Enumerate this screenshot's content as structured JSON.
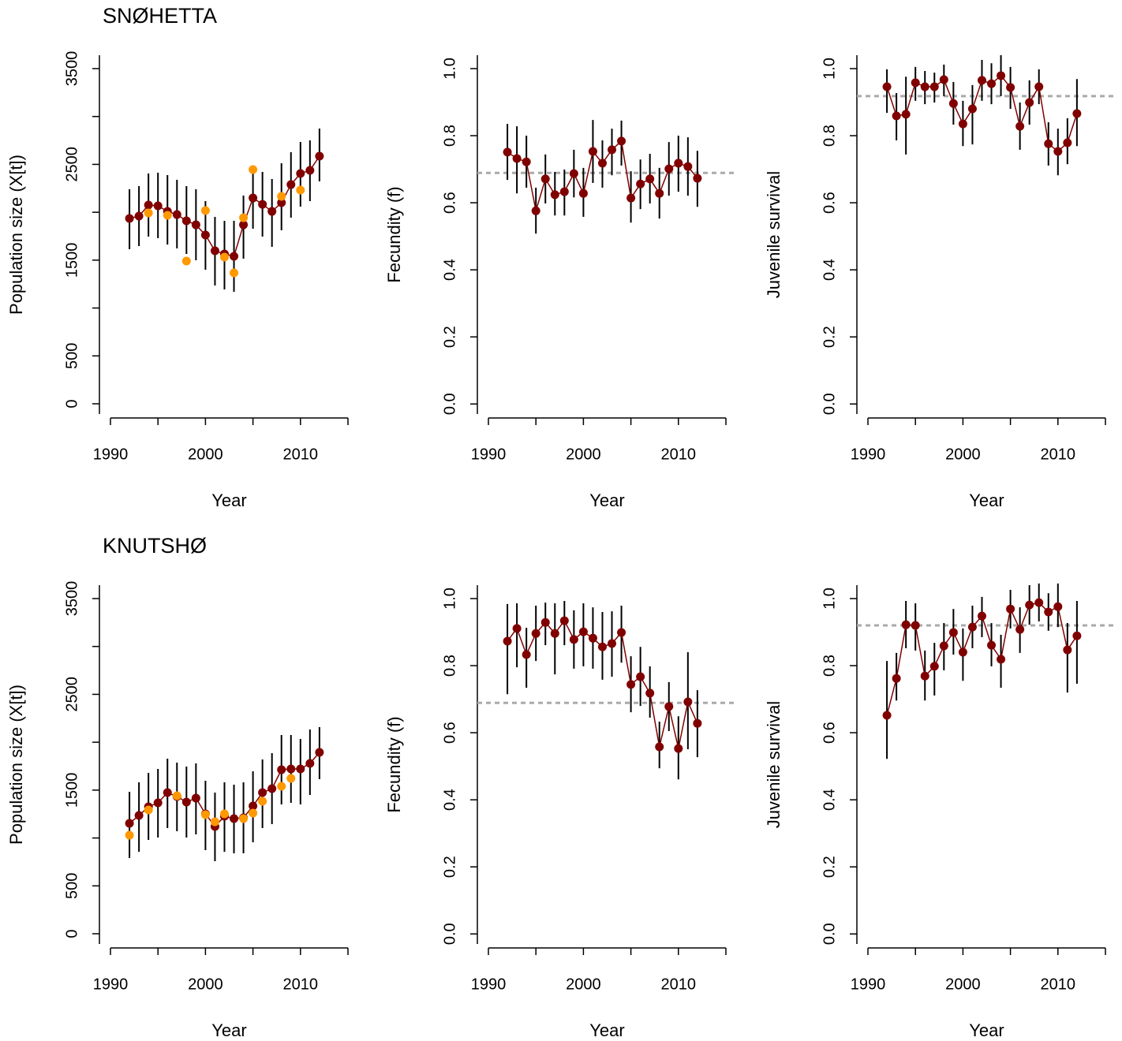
{
  "chart_data": [
    {
      "type": "line",
      "title": "SNØHETTA",
      "xlabel": "Year",
      "ylabel": "Population size (X[t])",
      "xlim": [
        1990,
        2015
      ],
      "ylim": [
        -107,
        3640
      ],
      "xticks": [
        1990,
        2000,
        2010
      ],
      "xticks_unlabeled": [
        1995,
        2005,
        2015
      ],
      "yticks": [
        0,
        500,
        1500,
        2500,
        3500
      ],
      "yticks_unlabeled": [
        1000,
        2000,
        3000
      ],
      "series": [
        {
          "color": "#800000",
          "x": [
            1992,
            1993,
            1994,
            1995,
            1996,
            1997,
            1998,
            1999,
            2000,
            2001,
            2002,
            2003,
            2004,
            2005,
            2006,
            2007,
            2008,
            2009,
            2010,
            2011,
            2012
          ],
          "values": [
            1935,
            1960,
            2075,
            2067,
            2009,
            1976,
            1911,
            1869,
            1762,
            1598,
            1565,
            1540,
            1869,
            2149,
            2083,
            2009,
            2100,
            2289,
            2405,
            2438,
            2586
          ],
          "lower": [
            1614,
            1647,
            1746,
            1729,
            1663,
            1622,
            1565,
            1499,
            1400,
            1235,
            1194,
            1169,
            1515,
            1828,
            1746,
            1639,
            1812,
            1944,
            2059,
            2116,
            2322
          ],
          "upper": [
            2240,
            2273,
            2405,
            2413,
            2388,
            2339,
            2273,
            2240,
            2116,
            1952,
            1911,
            1911,
            2174,
            2487,
            2421,
            2347,
            2512,
            2627,
            2734,
            2751,
            2874
          ]
        },
        {
          "color": "#ff9900",
          "x": [
            1994,
            1996,
            1998,
            2000,
            2002,
            2003,
            2004,
            2005,
            2008,
            2010
          ],
          "values": [
            1993,
            1968,
            1491,
            2018,
            1532,
            1367,
            1943,
            2446,
            2166,
            2232
          ],
          "line": false
        }
      ]
    },
    {
      "type": "line",
      "xlabel": "Year",
      "ylabel": "Fecundity (f)",
      "xlim": [
        1990,
        2015
      ],
      "ylim": [
        -0.03,
        1.04
      ],
      "xticks": [
        1990,
        2000,
        2010
      ],
      "xticks_unlabeled": [
        1995,
        2005,
        2015
      ],
      "yticks": [
        {
          "value": 0,
          "label": "0.0"
        },
        0.2,
        0.4,
        0.6,
        0.8,
        {
          "value": 1,
          "label": "1.0"
        }
      ],
      "hline": 0.689,
      "hline_color": "#aaaaaa",
      "series": [
        {
          "color": "#800000",
          "x": [
            1992,
            1993,
            1994,
            1995,
            1996,
            1997,
            1998,
            1999,
            2000,
            2001,
            2002,
            2003,
            2004,
            2005,
            2006,
            2007,
            2008,
            2009,
            2010,
            2011,
            2012
          ],
          "values": [
            0.751,
            0.732,
            0.722,
            0.576,
            0.671,
            0.624,
            0.633,
            0.687,
            0.628,
            0.753,
            0.718,
            0.758,
            0.784,
            0.614,
            0.656,
            0.671,
            0.628,
            0.701,
            0.718,
            0.708,
            0.673
          ],
          "lower": [
            0.668,
            0.628,
            0.645,
            0.508,
            0.598,
            0.562,
            0.562,
            0.616,
            0.558,
            0.659,
            0.645,
            0.682,
            0.711,
            0.541,
            0.581,
            0.598,
            0.553,
            0.621,
            0.633,
            0.621,
            0.588
          ],
          "upper": [
            0.835,
            0.828,
            0.8,
            0.645,
            0.744,
            0.692,
            0.699,
            0.758,
            0.704,
            0.847,
            0.786,
            0.821,
            0.845,
            0.694,
            0.729,
            0.746,
            0.704,
            0.781,
            0.8,
            0.795,
            0.755
          ]
        }
      ]
    },
    {
      "type": "line",
      "xlabel": "Year",
      "ylabel": "Juvenile survival",
      "xlim": [
        1990,
        2015
      ],
      "ylim": [
        -0.03,
        1.04
      ],
      "xticks": [
        1990,
        2000,
        2010
      ],
      "xticks_unlabeled": [
        1995,
        2005,
        2015
      ],
      "yticks": [
        {
          "value": 0,
          "label": "0.0"
        },
        0.2,
        0.4,
        0.6,
        0.8,
        {
          "value": 1,
          "label": "1.0"
        }
      ],
      "hline": 0.918,
      "hline_color": "#aaaaaa",
      "series": [
        {
          "color": "#800000",
          "x": [
            1992,
            1993,
            1994,
            1995,
            1996,
            1997,
            1998,
            1999,
            2000,
            2001,
            2002,
            2003,
            2004,
            2005,
            2006,
            2007,
            2008,
            2009,
            2010,
            2011,
            2012
          ],
          "values": [
            0.946,
            0.859,
            0.864,
            0.958,
            0.946,
            0.946,
            0.967,
            0.896,
            0.835,
            0.88,
            0.965,
            0.955,
            0.979,
            0.944,
            0.828,
            0.899,
            0.946,
            0.776,
            0.753,
            0.779,
            0.866
          ],
          "lower": [
            0.868,
            0.786,
            0.744,
            0.904,
            0.894,
            0.899,
            0.918,
            0.833,
            0.769,
            0.774,
            0.904,
            0.894,
            0.918,
            0.88,
            0.758,
            0.833,
            0.894,
            0.711,
            0.682,
            0.715,
            0.769
          ],
          "upper": [
            0.998,
            0.927,
            0.976,
            1.005,
            0.993,
            0.988,
            1.012,
            0.96,
            0.904,
            0.951,
            1.026,
            1.016,
            1.04,
            1.005,
            0.899,
            0.965,
            0.998,
            0.84,
            0.821,
            0.852,
            0.969
          ]
        }
      ]
    },
    {
      "type": "line",
      "title": "KNUTSHØ",
      "xlabel": "Year",
      "ylabel": "Population size (X[t])",
      "xlim": [
        1990,
        2015
      ],
      "ylim": [
        -107,
        3640
      ],
      "xticks": [
        1990,
        2000,
        2010
      ],
      "xticks_unlabeled": [
        1995,
        2005,
        2015
      ],
      "yticks": [
        0,
        500,
        1500,
        2500,
        3500
      ],
      "yticks_unlabeled": [
        1000,
        2000,
        3000
      ],
      "series": [
        {
          "color": "#800000",
          "x": [
            1992,
            1993,
            1994,
            1995,
            1996,
            1997,
            1998,
            1999,
            2000,
            2001,
            2002,
            2003,
            2004,
            2005,
            2006,
            2007,
            2008,
            2009,
            2010,
            2011,
            2012
          ],
          "values": [
            1153,
            1235,
            1326,
            1367,
            1474,
            1433,
            1375,
            1416,
            1252,
            1120,
            1227,
            1202,
            1211,
            1334,
            1474,
            1515,
            1713,
            1721,
            1721,
            1779,
            1894
          ],
          "lower": [
            791,
            856,
            980,
            1005,
            1104,
            1071,
            1005,
            1038,
            873,
            758,
            856,
            840,
            840,
            955,
            1104,
            1145,
            1351,
            1367,
            1351,
            1449,
            1614
          ],
          "upper": [
            1482,
            1581,
            1680,
            1721,
            1828,
            1787,
            1746,
            1779,
            1598,
            1474,
            1581,
            1556,
            1581,
            1696,
            1820,
            1886,
            2075,
            2075,
            2034,
            2133,
            2158
          ]
        },
        {
          "color": "#ff9900",
          "x": [
            1992,
            1994,
            1997,
            2000,
            2001,
            2002,
            2004,
            2005,
            2006,
            2008,
            2009
          ],
          "values": [
            1029,
            1293,
            1441,
            1244,
            1169,
            1252,
            1202,
            1260,
            1384,
            1540,
            1622
          ],
          "line": false
        }
      ]
    },
    {
      "type": "line",
      "xlabel": "Year",
      "ylabel": "Fecundity (f)",
      "xlim": [
        1990,
        2015
      ],
      "ylim": [
        -0.03,
        1.04
      ],
      "xticks": [
        1990,
        2000,
        2010
      ],
      "xticks_unlabeled": [
        1995,
        2005,
        2015
      ],
      "yticks": [
        {
          "value": 0,
          "label": "0.0"
        },
        0.2,
        0.4,
        0.6,
        0.8,
        {
          "value": 1,
          "label": "1.0"
        }
      ],
      "hline": 0.689,
      "hline_color": "#aaaaaa",
      "series": [
        {
          "color": "#800000",
          "x": [
            1992,
            1993,
            1994,
            1995,
            1996,
            1997,
            1998,
            1999,
            2000,
            2001,
            2002,
            2003,
            2004,
            2005,
            2006,
            2007,
            2008,
            2009,
            2010,
            2011,
            2012
          ],
          "values": [
            0.873,
            0.911,
            0.833,
            0.896,
            0.929,
            0.896,
            0.934,
            0.878,
            0.901,
            0.882,
            0.856,
            0.866,
            0.899,
            0.744,
            0.767,
            0.718,
            0.558,
            0.678,
            0.553,
            0.692,
            0.628
          ],
          "lower": [
            0.715,
            0.795,
            0.734,
            0.814,
            0.861,
            0.774,
            0.861,
            0.791,
            0.798,
            0.791,
            0.758,
            0.767,
            0.809,
            0.661,
            0.68,
            0.645,
            0.494,
            0.605,
            0.461,
            0.551,
            0.527
          ],
          "upper": [
            0.984,
            0.986,
            0.913,
            0.979,
            0.988,
            0.986,
            0.993,
            0.965,
            0.986,
            0.974,
            0.96,
            0.962,
            0.979,
            0.828,
            0.856,
            0.798,
            0.633,
            0.751,
            0.649,
            0.84,
            0.727
          ]
        }
      ]
    },
    {
      "type": "line",
      "xlabel": "Year",
      "ylabel": "Juvenile survival",
      "xlim": [
        1990,
        2015
      ],
      "ylim": [
        -0.03,
        1.04
      ],
      "xticks": [
        1990,
        2000,
        2010
      ],
      "xticks_unlabeled": [
        1995,
        2005,
        2015
      ],
      "yticks": [
        {
          "value": 0,
          "label": "0.0"
        },
        0.2,
        0.4,
        0.6,
        0.8,
        {
          "value": 1,
          "label": "1.0"
        }
      ],
      "hline": 0.92,
      "hline_color": "#aaaaaa",
      "series": [
        {
          "color": "#800000",
          "x": [
            1992,
            1993,
            1994,
            1995,
            1996,
            1997,
            1998,
            1999,
            2000,
            2001,
            2002,
            2003,
            2004,
            2005,
            2006,
            2007,
            2008,
            2009,
            2010,
            2011,
            2012
          ],
          "values": [
            0.652,
            0.762,
            0.922,
            0.92,
            0.769,
            0.798,
            0.859,
            0.899,
            0.84,
            0.915,
            0.948,
            0.861,
            0.819,
            0.969,
            0.908,
            0.981,
            0.988,
            0.96,
            0.976,
            0.847,
            0.889
          ],
          "lower": [
            0.522,
            0.696,
            0.852,
            0.845,
            0.696,
            0.711,
            0.786,
            0.833,
            0.755,
            0.852,
            0.885,
            0.798,
            0.734,
            0.911,
            0.838,
            0.922,
            0.932,
            0.904,
            0.915,
            0.72,
            0.746
          ],
          "upper": [
            0.814,
            0.838,
            0.993,
            0.986,
            0.845,
            0.868,
            0.927,
            0.969,
            0.911,
            0.979,
            1.005,
            0.927,
            0.892,
            1.026,
            0.974,
            1.04,
            1.045,
            1.016,
            1.045,
            0.927,
            0.993
          ]
        }
      ]
    }
  ]
}
